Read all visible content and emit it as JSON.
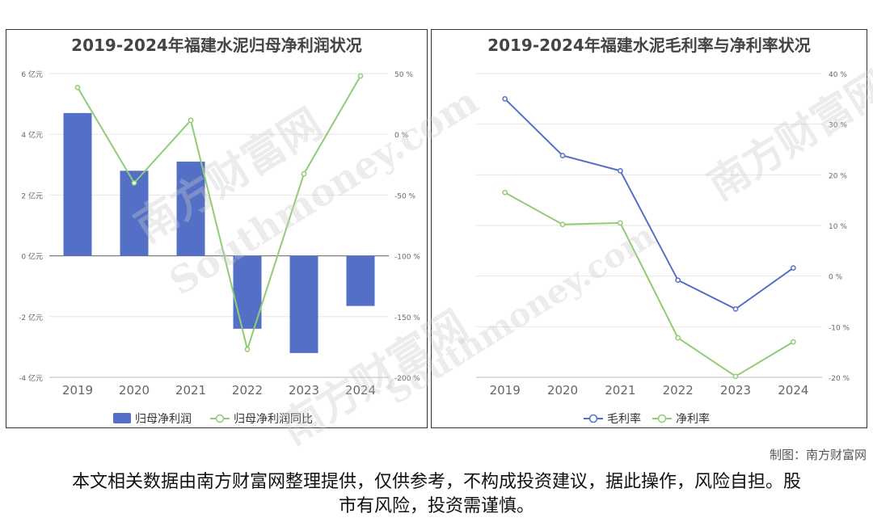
{
  "credit": "制图：南方财富网",
  "disclaimer": "本文相关数据由南方财富网整理提供，仅供参考，不构成投资建议，据此操作，风险自担。股市有风险，投资需谨慎。",
  "watermark": {
    "cn": "南方财富网",
    "en": "Southmoney.com"
  },
  "chart_data": [
    {
      "type": "bar",
      "title": "2019-2024年福建水泥归母净利润状况",
      "categories": [
        "2019",
        "2020",
        "2021",
        "2022",
        "2023",
        "2024"
      ],
      "series": [
        {
          "name": "归母净利润",
          "type": "bar",
          "axis": "left",
          "color": "#5470c6",
          "values": [
            4.7,
            2.8,
            3.1,
            -2.4,
            -3.2,
            -1.65
          ]
        },
        {
          "name": "归母净利润同比",
          "type": "line",
          "axis": "right",
          "color": "#91cc75",
          "values": [
            38.5,
            -40.0,
            11.5,
            -177.0,
            -32.5,
            48.0
          ]
        }
      ],
      "y_left": {
        "min": -4,
        "max": 6,
        "ticks": [
          "-4 亿元",
          "-2 亿元",
          "0 亿元",
          "2 亿元",
          "4 亿元",
          "6 亿元"
        ]
      },
      "y_right": {
        "min": -200,
        "max": 50,
        "ticks": [
          "-200 %",
          "-150 %",
          "-100 %",
          "-50 %",
          "0 %",
          "50 %"
        ]
      },
      "legend": "bottom"
    },
    {
      "type": "line",
      "title": "2019-2024年福建水泥毛利率与净利率状况",
      "categories": [
        "2019",
        "2020",
        "2021",
        "2022",
        "2023",
        "2024"
      ],
      "series": [
        {
          "name": "毛利率",
          "color": "#5470c6",
          "values": [
            35.0,
            23.8,
            20.8,
            -0.8,
            -6.5,
            1.6
          ]
        },
        {
          "name": "净利率",
          "color": "#91cc75",
          "values": [
            16.5,
            10.2,
            10.5,
            -12.2,
            -19.8,
            -13.0
          ]
        }
      ],
      "y_right": {
        "min": -20,
        "max": 40,
        "ticks": [
          "-20 %",
          "-10 %",
          "0 %",
          "10 %",
          "20 %",
          "30 %",
          "40 %"
        ]
      },
      "legend": "bottom"
    }
  ]
}
